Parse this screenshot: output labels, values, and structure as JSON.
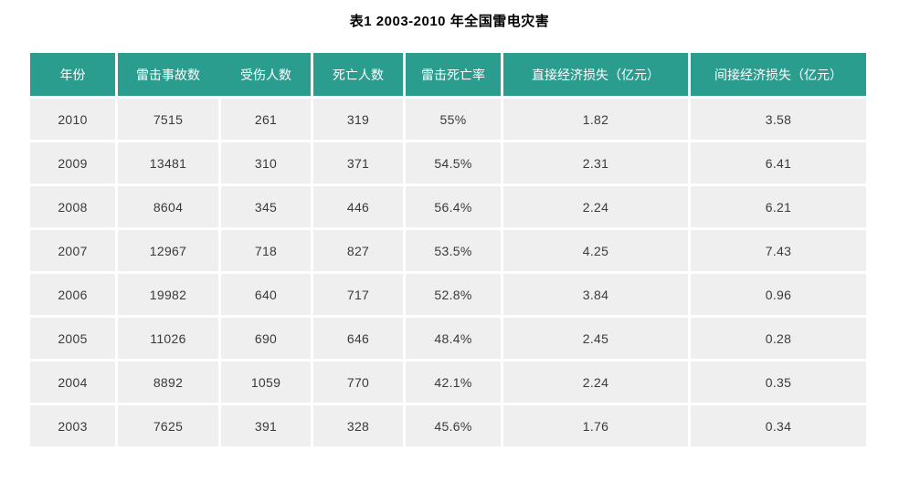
{
  "title": "表1 2003-2010 年全国雷电灾害",
  "table": {
    "columns": [
      {
        "label": "年份"
      },
      {
        "label": "雷击事故数"
      },
      {
        "label": "受伤人数"
      },
      {
        "label": "死亡人数"
      },
      {
        "label": "雷击死亡率"
      },
      {
        "label": "直接经济损失（亿元）"
      },
      {
        "label": "间接经济损失（亿元）"
      }
    ],
    "rows": [
      [
        "2010",
        "7515",
        "261",
        "319",
        "55%",
        "1.82",
        "3.58"
      ],
      [
        "2009",
        "13481",
        "310",
        "371",
        "54.5%",
        "2.31",
        "6.41"
      ],
      [
        "2008",
        "8604",
        "345",
        "446",
        "56.4%",
        "2.24",
        "6.21"
      ],
      [
        "2007",
        "12967",
        "718",
        "827",
        "53.5%",
        "4.25",
        "7.43"
      ],
      [
        "2006",
        "19982",
        "640",
        "717",
        "52.8%",
        "3.84",
        "0.96"
      ],
      [
        "2005",
        "11026",
        "690",
        "646",
        "48.4%",
        "2.45",
        "0.28"
      ],
      [
        "2004",
        "8892",
        "1059",
        "770",
        "42.1%",
        "2.24",
        "0.35"
      ],
      [
        "2003",
        "7625",
        "391",
        "328",
        "45.6%",
        "1.76",
        "0.34"
      ]
    ]
  },
  "colors": {
    "header_bg": "#2A9D8F",
    "header_text": "#FFFFFF",
    "row_bg": "#EFEFEF",
    "body_text": "#3A3A3A",
    "title_color": "#000000"
  }
}
